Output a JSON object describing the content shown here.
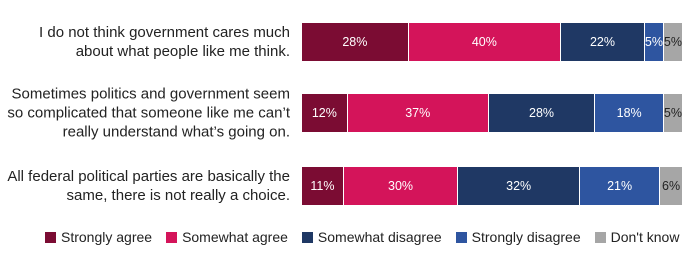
{
  "chart_data": {
    "type": "stacked-bar-horizontal",
    "categories": [
      "I do not think government cares much about what people like me think.",
      "Sometimes politics and government seem so complicated that someone like me can’t really understand what’s going on.",
      "All federal political parties are basically the same, there is not really a choice."
    ],
    "series": [
      {
        "name": "Strongly agree",
        "color": "#7b0c33",
        "values": [
          28,
          12,
          11
        ],
        "value_labels": [
          "28%",
          "12%",
          "11%"
        ]
      },
      {
        "name": "Somewhat agree",
        "color": "#d4145a",
        "values": [
          40,
          37,
          30
        ],
        "value_labels": [
          "40%",
          "37%",
          "30%"
        ]
      },
      {
        "name": "Somewhat disagree",
        "color": "#1f3864",
        "values": [
          22,
          28,
          32
        ],
        "value_labels": [
          "22%",
          "28%",
          "32%"
        ]
      },
      {
        "name": "Strongly disagree",
        "color": "#2e55a0",
        "values": [
          5,
          18,
          21
        ],
        "value_labels": [
          "5%",
          "18%",
          "21%"
        ]
      },
      {
        "name": "Don't know",
        "color": "#a6a6a6",
        "values": [
          5,
          5,
          6
        ],
        "value_labels": [
          "5%",
          "5%",
          "6%"
        ]
      }
    ],
    "legend": "bottom"
  }
}
